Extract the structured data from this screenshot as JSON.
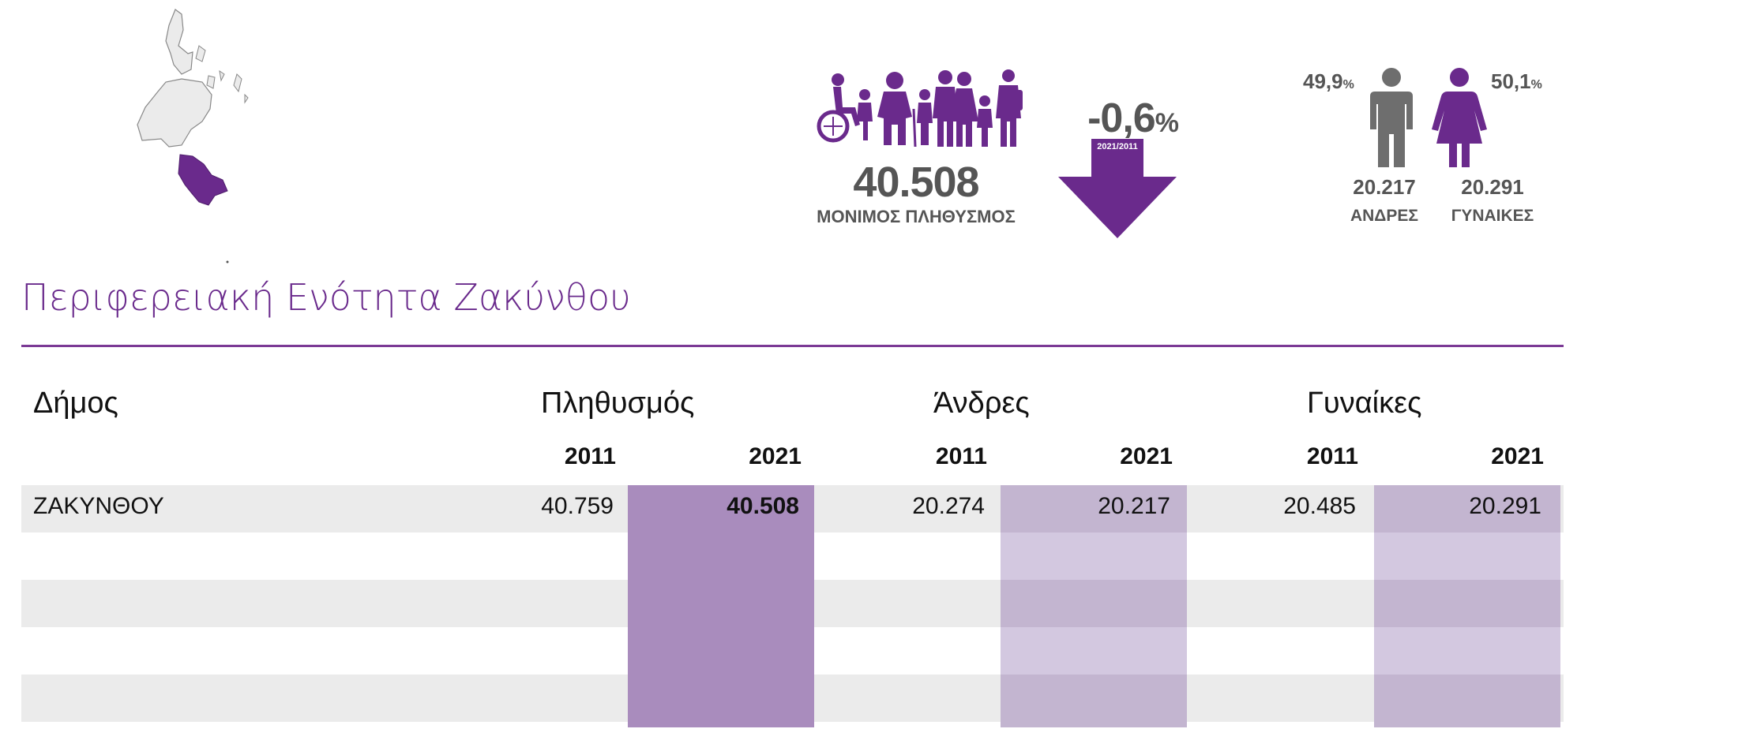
{
  "header": {
    "population_value": "40.508",
    "population_label": "ΜΟΝΙΜΟΣ ΠΛΗΘΥΣΜΟΣ",
    "change_value": "-0,6",
    "change_unit": "%",
    "change_period": "2021/2011",
    "men_percent": "49,9",
    "women_percent": "50,1",
    "percent_sign": "%",
    "men_count": "20.217",
    "women_count": "20.291",
    "men_label": "ΑΝΔΡΕΣ",
    "women_label": "ΓΥΝΑΙΚΕΣ"
  },
  "title": "Περιφερειακή Ενότητα Ζακύνθου",
  "table": {
    "col_dimos": "Δήμος",
    "col_population": "Πληθυσμός",
    "col_men": "Άνδρες",
    "col_women": "Γυναίκες",
    "years": [
      "2011",
      "2021",
      "2011",
      "2021",
      "2011",
      "2021"
    ],
    "rows": [
      {
        "name": "ΖΑΚΥΝΘΟΥ",
        "pop_2011": "40.759",
        "pop_2021": "40.508",
        "men_2011": "20.274",
        "men_2021": "20.217",
        "women_2011": "20.485",
        "women_2021": "20.291"
      }
    ]
  },
  "colors": {
    "accent": "#6a2a8c",
    "highlight": "#a98cbd",
    "text_grey": "#555555"
  },
  "icons": {
    "map": "ionian-islands-map",
    "people": "population-group-icon",
    "arrow": "decrease-arrow-icon",
    "man": "man-icon",
    "woman": "woman-icon"
  }
}
